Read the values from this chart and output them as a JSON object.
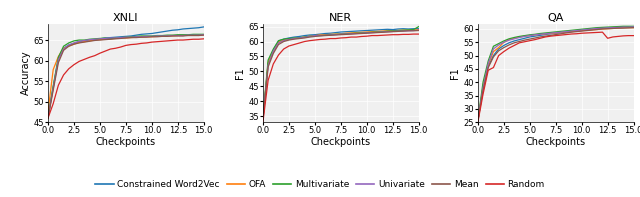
{
  "title_xnli": "XNLI",
  "title_ner": "NER",
  "title_qa": "QA",
  "ylabel_xnli": "Accuracy",
  "ylabel_ner": "F1",
  "ylabel_qa": "F1",
  "xlabel": "Checkpoints",
  "checkpoints": [
    0.0,
    0.5,
    1.0,
    1.5,
    2.0,
    2.5,
    3.0,
    3.5,
    4.0,
    4.5,
    5.0,
    5.5,
    6.0,
    6.5,
    7.0,
    7.5,
    8.0,
    8.5,
    9.0,
    9.5,
    10.0,
    10.5,
    11.0,
    11.5,
    12.0,
    12.5,
    13.0,
    13.5,
    14.0,
    14.5,
    15.0
  ],
  "series": {
    "Constrained Word2Vec": {
      "color": "#1f77b4",
      "xnli": [
        46.5,
        53.5,
        60.5,
        63.0,
        63.8,
        64.2,
        64.6,
        64.8,
        65.0,
        65.1,
        65.3,
        65.5,
        65.6,
        65.7,
        65.8,
        65.9,
        66.0,
        66.2,
        66.4,
        66.5,
        66.6,
        66.8,
        67.0,
        67.2,
        67.4,
        67.5,
        67.7,
        67.8,
        67.9,
        68.0,
        68.2
      ],
      "ner": [
        34.0,
        52.5,
        57.0,
        60.2,
        60.8,
        61.2,
        61.5,
        61.7,
        62.0,
        62.2,
        62.3,
        62.5,
        62.7,
        62.8,
        63.0,
        63.2,
        63.3,
        63.4,
        63.5,
        63.6,
        63.7,
        63.8,
        63.9,
        64.0,
        64.1,
        64.0,
        64.2,
        64.3,
        64.2,
        64.3,
        64.3
      ],
      "qa": [
        25.5,
        37.5,
        46.0,
        50.0,
        52.5,
        53.8,
        54.8,
        55.5,
        56.0,
        56.5,
        57.0,
        57.3,
        57.6,
        57.9,
        58.2,
        58.4,
        58.6,
        58.8,
        59.0,
        59.2,
        59.4,
        59.6,
        59.8,
        60.0,
        60.2,
        60.3,
        60.4,
        60.5,
        60.6,
        60.7,
        60.8
      ]
    },
    "OFA": {
      "color": "#ff7f0e",
      "xnli": [
        47.5,
        57.8,
        61.0,
        63.0,
        63.5,
        64.0,
        64.4,
        64.6,
        64.8,
        65.0,
        65.1,
        65.2,
        65.3,
        65.4,
        65.5,
        65.5,
        65.6,
        65.7,
        65.7,
        65.8,
        65.8,
        65.9,
        65.9,
        66.0,
        66.0,
        66.1,
        66.1,
        66.2,
        66.2,
        66.2,
        66.3
      ],
      "ner": [
        34.0,
        53.0,
        56.5,
        59.8,
        60.5,
        60.8,
        61.0,
        61.2,
        61.5,
        61.8,
        62.0,
        62.2,
        62.3,
        62.4,
        62.5,
        62.6,
        62.8,
        62.9,
        63.0,
        63.1,
        63.2,
        63.3,
        63.4,
        63.5,
        63.6,
        63.6,
        63.7,
        63.8,
        63.8,
        63.9,
        64.0
      ],
      "qa": [
        25.5,
        38.5,
        46.5,
        51.5,
        53.0,
        55.0,
        56.0,
        56.5,
        57.0,
        57.3,
        57.5,
        57.8,
        58.0,
        58.2,
        58.3,
        58.5,
        58.7,
        58.9,
        59.0,
        59.2,
        59.4,
        59.5,
        59.7,
        59.8,
        60.0,
        60.1,
        60.2,
        60.3,
        60.5,
        60.5,
        60.5
      ]
    },
    "Multivariate": {
      "color": "#2ca02c",
      "xnli": [
        46.0,
        53.8,
        60.8,
        63.5,
        64.3,
        64.8,
        65.0,
        65.0,
        65.2,
        65.3,
        65.4,
        65.5,
        65.3,
        65.5,
        65.6,
        65.7,
        65.8,
        65.9,
        66.0,
        66.0,
        66.0,
        66.1,
        66.1,
        66.2,
        66.2,
        66.3,
        66.3,
        66.3,
        66.4,
        66.4,
        66.4
      ],
      "ner": [
        34.5,
        53.8,
        57.5,
        60.3,
        60.8,
        61.0,
        61.2,
        61.3,
        61.5,
        61.8,
        62.0,
        62.0,
        62.1,
        62.3,
        62.4,
        62.5,
        62.6,
        62.7,
        62.8,
        62.9,
        63.0,
        63.1,
        63.2,
        63.3,
        63.5,
        63.6,
        63.7,
        63.8,
        63.9,
        64.0,
        65.0
      ],
      "qa": [
        25.5,
        40.0,
        48.0,
        53.5,
        54.5,
        55.5,
        56.3,
        56.8,
        57.2,
        57.5,
        57.8,
        58.0,
        58.3,
        58.5,
        58.7,
        58.9,
        59.1,
        59.3,
        59.5,
        59.7,
        59.9,
        60.1,
        60.3,
        60.5,
        60.6,
        60.7,
        60.8,
        60.9,
        61.0,
        61.0,
        61.0
      ]
    },
    "Univariate": {
      "color": "#9467bd",
      "xnli": [
        46.2,
        53.2,
        60.2,
        62.8,
        63.8,
        64.3,
        64.7,
        64.9,
        65.1,
        65.2,
        65.3,
        65.4,
        65.5,
        65.5,
        65.6,
        65.7,
        65.7,
        65.8,
        65.8,
        65.9,
        65.9,
        66.0,
        66.0,
        66.0,
        66.1,
        66.1,
        66.1,
        66.2,
        66.2,
        66.2,
        66.3
      ],
      "ner": [
        34.0,
        52.0,
        56.8,
        59.5,
        60.3,
        60.7,
        61.0,
        61.2,
        61.4,
        61.7,
        62.0,
        62.0,
        62.1,
        62.2,
        62.3,
        62.5,
        62.5,
        62.6,
        62.7,
        62.8,
        62.9,
        63.0,
        63.1,
        63.2,
        63.3,
        63.4,
        63.5,
        63.5,
        63.6,
        63.7,
        63.8
      ],
      "qa": [
        25.5,
        38.0,
        47.0,
        52.5,
        54.0,
        55.0,
        55.8,
        56.3,
        56.8,
        57.2,
        57.5,
        57.8,
        58.0,
        58.2,
        58.4,
        58.6,
        58.8,
        59.0,
        59.2,
        59.4,
        59.6,
        59.8,
        60.0,
        60.2,
        60.3,
        60.4,
        60.5,
        60.6,
        60.7,
        60.7,
        60.8
      ]
    },
    "Mean": {
      "color": "#8c564b",
      "xnli": [
        46.0,
        52.8,
        59.5,
        62.5,
        63.5,
        64.0,
        64.3,
        64.5,
        64.7,
        64.9,
        65.0,
        65.1,
        65.2,
        65.3,
        65.4,
        65.5,
        65.6,
        65.6,
        65.7,
        65.7,
        65.8,
        65.8,
        65.9,
        65.9,
        66.0,
        66.0,
        66.0,
        66.1,
        66.1,
        66.1,
        66.2
      ],
      "ner": [
        34.0,
        51.5,
        56.0,
        59.0,
        60.0,
        60.5,
        60.8,
        61.0,
        61.2,
        61.5,
        61.7,
        61.9,
        62.0,
        62.1,
        62.2,
        62.3,
        62.4,
        62.5,
        62.6,
        62.7,
        62.8,
        62.9,
        63.0,
        63.1,
        63.2,
        63.3,
        63.4,
        63.5,
        63.6,
        63.6,
        63.7
      ],
      "qa": [
        25.5,
        37.0,
        45.5,
        49.5,
        51.8,
        53.0,
        54.0,
        54.8,
        55.3,
        55.8,
        56.2,
        56.6,
        57.0,
        57.3,
        57.6,
        57.9,
        58.2,
        58.5,
        58.8,
        59.0,
        59.2,
        59.4,
        59.6,
        59.8,
        60.0,
        60.1,
        60.2,
        60.3,
        60.3,
        60.4,
        60.5
      ]
    },
    "Random": {
      "color": "#d62728",
      "xnli": [
        46.0,
        49.5,
        54.0,
        56.5,
        58.0,
        59.0,
        59.8,
        60.3,
        60.8,
        61.2,
        61.8,
        62.3,
        62.8,
        63.0,
        63.3,
        63.7,
        63.9,
        64.0,
        64.2,
        64.3,
        64.5,
        64.6,
        64.7,
        64.8,
        64.9,
        65.0,
        65.0,
        65.1,
        65.2,
        65.2,
        65.3
      ],
      "ner": [
        33.0,
        47.0,
        52.5,
        55.5,
        57.5,
        58.5,
        59.0,
        59.5,
        60.0,
        60.3,
        60.5,
        60.7,
        60.8,
        61.0,
        61.0,
        61.2,
        61.3,
        61.5,
        61.5,
        61.7,
        61.8,
        62.0,
        62.0,
        62.1,
        62.2,
        62.3,
        62.3,
        62.4,
        62.4,
        62.5,
        62.5
      ],
      "qa": [
        25.0,
        35.5,
        44.5,
        45.5,
        50.0,
        51.5,
        52.8,
        53.8,
        54.8,
        55.2,
        55.6,
        56.0,
        56.5,
        57.0,
        57.3,
        57.5,
        57.7,
        57.9,
        58.1,
        58.2,
        58.4,
        58.5,
        58.6,
        58.7,
        58.8,
        56.5,
        57.0,
        57.2,
        57.4,
        57.5,
        57.5
      ]
    }
  },
  "ylim_xnli": [
    45,
    69
  ],
  "ylim_ner": [
    33,
    66
  ],
  "ylim_qa": [
    25,
    62
  ],
  "yticks_xnli": [
    45,
    50,
    55,
    60,
    65
  ],
  "yticks_ner": [
    35,
    40,
    45,
    50,
    55,
    60,
    65
  ],
  "yticks_qa": [
    25,
    30,
    35,
    40,
    45,
    50,
    55,
    60
  ],
  "xticks": [
    0.0,
    2.5,
    5.0,
    7.5,
    10.0,
    12.5,
    15.0
  ],
  "legend_order": [
    "Constrained Word2Vec",
    "OFA",
    "Multivariate",
    "Univariate",
    "Mean",
    "Random"
  ],
  "legend_ncol": 6,
  "bg_color": "#f0f0f0"
}
